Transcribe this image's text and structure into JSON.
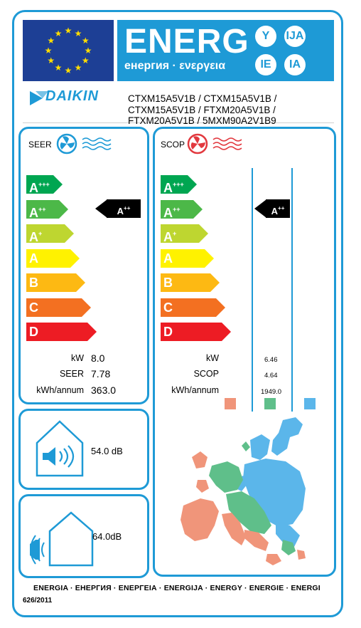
{
  "header": {
    "title": "ENERG",
    "subtitle": "енергия · ενεργεια",
    "languages": [
      "Y",
      "IJA",
      "IE",
      "IA"
    ]
  },
  "supplier": {
    "brand": "DAIKIN",
    "models": [
      "CTXM15A5V1B / CTXM15A5V1B /",
      "CTXM15A5V1B / FTXM20A5V1B /",
      "FTXM20A5V1B / 5MXM90A2V1B9"
    ]
  },
  "cooling": {
    "section_label": "SEER",
    "classes": [
      {
        "label": "A",
        "sup": "+++",
        "color": "#00a651"
      },
      {
        "label": "A",
        "sup": "++",
        "color": "#4cb848"
      },
      {
        "label": "A",
        "sup": "+",
        "color": "#bed630"
      },
      {
        "label": "A",
        "sup": "",
        "color": "#fff200"
      },
      {
        "label": "B",
        "sup": "",
        "color": "#fdb913"
      },
      {
        "label": "C",
        "sup": "",
        "color": "#f37021"
      },
      {
        "label": "D",
        "sup": "",
        "color": "#ed1c24"
      }
    ],
    "rating": {
      "label": "A",
      "sup": "++"
    },
    "rows": [
      {
        "label": "kW",
        "value": "8.0"
      },
      {
        "label": "SEER",
        "value": "7.78"
      },
      {
        "label": "kWh/annum",
        "value": "363.0"
      }
    ]
  },
  "heating": {
    "section_label": "SCOP",
    "classes": [
      {
        "label": "A",
        "sup": "+++",
        "color": "#00a651"
      },
      {
        "label": "A",
        "sup": "++",
        "color": "#4cb848"
      },
      {
        "label": "A",
        "sup": "+",
        "color": "#bed630"
      },
      {
        "label": "A",
        "sup": "",
        "color": "#fff200"
      },
      {
        "label": "B",
        "sup": "",
        "color": "#fdb913"
      },
      {
        "label": "C",
        "sup": "",
        "color": "#f37021"
      },
      {
        "label": "D",
        "sup": "",
        "color": "#ed1c24"
      }
    ],
    "rating": {
      "label": "A",
      "sup": "++"
    },
    "rows": [
      {
        "label": "kW",
        "value": "6.46"
      },
      {
        "label": "SCOP",
        "value": "4.64"
      },
      {
        "label": "kWh/annum",
        "value": "1949.0"
      }
    ],
    "zone_colors": [
      "#f0957a",
      "#5fbf8a",
      "#5bb6ea"
    ]
  },
  "noise": {
    "indoor_db": "54.0 dB",
    "outdoor_db": "64.0dB"
  },
  "footer": {
    "languages": "ENERGIA · ЕНЕРГИЯ · ΕΝΕΡΓΕΙΑ · ENERGIJA · ENERGY · ENERGIE · ENERGI",
    "regulation": "626/2011"
  },
  "colors": {
    "accent": "#1e9ad6",
    "eu_blue": "#1d3f95",
    "eu_star": "#ffdd00"
  }
}
